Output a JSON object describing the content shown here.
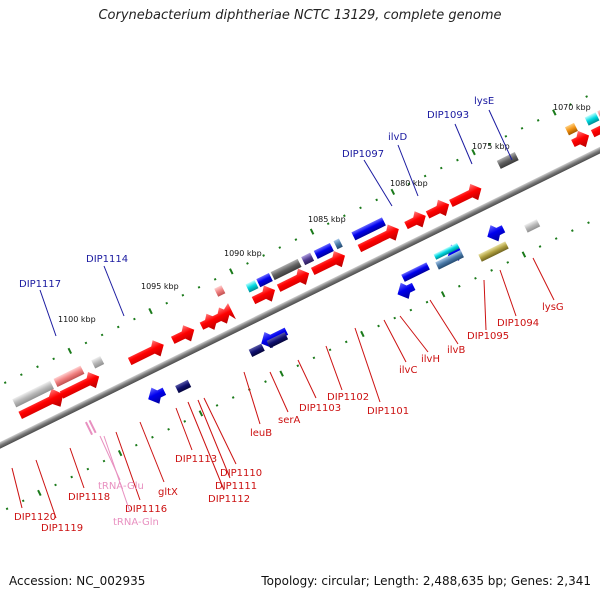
{
  "header": {
    "title": "Corynebacterium diphtheriae NCTC 13129, complete genome"
  },
  "footer": {
    "accession": "Accession: NC_002935",
    "summary": "Topology: circular; Length: 2,488,635 bp; Genes: 2,341"
  },
  "colors": {
    "backbone": "#888888",
    "forward_strand_gene": "#ff0000",
    "reverse_strand_gene": "#0000ee",
    "tick": "#1a7a1a",
    "label_top": "#1a1aa0",
    "label_bottom": "#cc1111",
    "label_rna": "#e890c0"
  },
  "map": {
    "scale_labels": [
      "1070 kbp",
      "1075 kbp",
      "1080 kbp",
      "1085 kbp",
      "1090 kbp",
      "1095 kbp",
      "1100 kbp"
    ],
    "top_gene_labels": [
      "lysE",
      "DIP1093",
      "ilvD",
      "DIP1097",
      "DIP1114",
      "DIP1117"
    ],
    "bottom_gene_labels": [
      "lysG",
      "DIP1094",
      "DIP1095",
      "ilvB",
      "ilvH",
      "ilvC",
      "DIP1101",
      "DIP1102",
      "DIP1103",
      "serA",
      "leuB",
      "DIP1110",
      "DIP1111",
      "DIP1112",
      "DIP1113",
      "gltX",
      "DIP1116",
      "DIP1118",
      "DIP1119",
      "DIP1120"
    ],
    "rna_labels": [
      "tRNA-Glu",
      "tRNA-Gln"
    ]
  }
}
